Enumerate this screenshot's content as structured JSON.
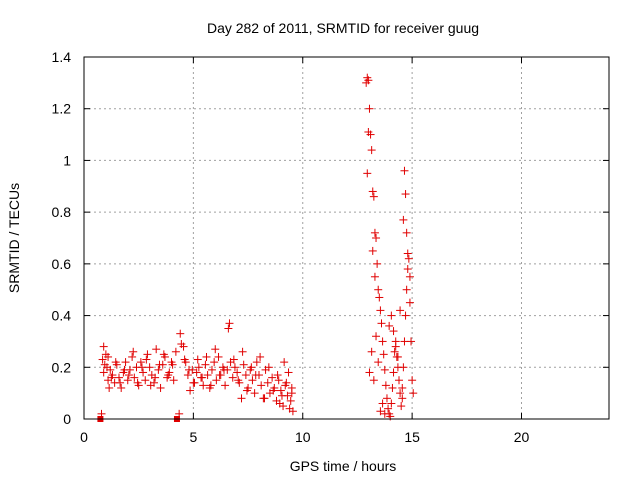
{
  "chart_data": {
    "type": "scatter",
    "title": "Day 282 of 2011, SRMTID for receiver guug",
    "xlabel": "GPS time / hours",
    "ylabel": "SRMTID / TECUs",
    "xlim": [
      0,
      24
    ],
    "ylim": [
      0,
      1.4
    ],
    "grid": true,
    "xticks": [
      0,
      5,
      10,
      15,
      20
    ],
    "xtick_labels": [
      "0",
      "5",
      "10",
      "15",
      "20"
    ],
    "yticks": [
      0,
      0.2,
      0.4,
      0.6,
      0.8,
      1,
      1.2,
      1.4
    ],
    "ytick_labels": [
      "0",
      "0.2",
      "0.4",
      "0.6",
      "0.8",
      "1",
      "1.2",
      "1.4"
    ],
    "marker_color": "#e00000",
    "series": [
      {
        "name": "SRMTID",
        "marker": "plus",
        "x": [
          0.8,
          0.85,
          0.9,
          0.95,
          1.0,
          1.05,
          1.1,
          1.15,
          1.2,
          1.3,
          1.4,
          1.5,
          1.6,
          1.7,
          1.8,
          1.9,
          2.0,
          2.1,
          2.2,
          2.3,
          2.4,
          2.5,
          2.6,
          2.7,
          2.8,
          2.9,
          3.0,
          3.1,
          3.2,
          3.3,
          3.4,
          3.5,
          3.6,
          3.7,
          3.8,
          3.9,
          4.0,
          4.1,
          4.2,
          4.35,
          4.45,
          4.55,
          4.65,
          4.75,
          4.85,
          4.95,
          5.05,
          5.15,
          5.25,
          5.35,
          5.45,
          5.55,
          5.65,
          5.75,
          5.85,
          5.95,
          6.05,
          6.15,
          6.25,
          6.35,
          6.45,
          6.55,
          6.6,
          6.7,
          6.8,
          6.9,
          7.0,
          7.1,
          7.2,
          7.3,
          7.4,
          7.5,
          7.6,
          7.7,
          7.8,
          7.9,
          8.0,
          8.1,
          8.2,
          8.3,
          8.4,
          8.5,
          8.6,
          8.7,
          8.8,
          8.9,
          9.0,
          9.1,
          9.2,
          9.3,
          9.4,
          9.5,
          9.55,
          0.9,
          1.1,
          1.25,
          1.45,
          1.65,
          1.85,
          2.05,
          2.25,
          2.45,
          2.65,
          2.85,
          3.05,
          3.25,
          3.45,
          3.65,
          3.85,
          4.05,
          4.4,
          4.6,
          4.8,
          5.0,
          5.2,
          5.4,
          5.6,
          5.8,
          6.0,
          6.2,
          6.4,
          6.65,
          6.85,
          7.05,
          7.25,
          7.45,
          7.65,
          7.85,
          8.05,
          8.25,
          8.45,
          8.65,
          8.85,
          9.05,
          9.25,
          9.45,
          9.5,
          9.35,
          9.15,
          8.95,
          12.9,
          12.95,
          13.0,
          13.05,
          13.0,
          13.1,
          13.15,
          12.95,
          13.2,
          13.25,
          13.3,
          13.2,
          13.35,
          13.4,
          13.3,
          13.45,
          13.5,
          13.55,
          13.6,
          13.65,
          13.7,
          13.75,
          13.8,
          13.85,
          13.9,
          13.95,
          14.0,
          14.05,
          14.1,
          14.15,
          14.2,
          14.25,
          14.3,
          14.35,
          14.4,
          14.45,
          14.5,
          14.55,
          14.6,
          14.65,
          14.7,
          14.75,
          14.8,
          14.85,
          14.9,
          14.95,
          15.0,
          15.05,
          14.65,
          14.7,
          14.6,
          14.75,
          14.8,
          14.9,
          13.25,
          13.35,
          13.15,
          13.45,
          13.05,
          14.15,
          14.05,
          14.25,
          13.95,
          14.35,
          14.45,
          14.55,
          13.55,
          13.65,
          13.75
        ],
        "y": [
          0.02,
          0.23,
          0.18,
          0.21,
          0.25,
          0.2,
          0.15,
          0.12,
          0.19,
          0.17,
          0.14,
          0.21,
          0.16,
          0.12,
          0.18,
          0.22,
          0.15,
          0.19,
          0.24,
          0.16,
          0.2,
          0.13,
          0.22,
          0.18,
          0.15,
          0.25,
          0.2,
          0.17,
          0.14,
          0.27,
          0.19,
          0.12,
          0.21,
          0.24,
          0.16,
          0.18,
          0.22,
          0.15,
          0.26,
          0.02,
          0.29,
          0.28,
          0.22,
          0.17,
          0.11,
          0.19,
          0.14,
          0.18,
          0.2,
          0.16,
          0.13,
          0.21,
          0.17,
          0.12,
          0.19,
          0.22,
          0.15,
          0.24,
          0.17,
          0.2,
          0.13,
          0.19,
          0.35,
          0.22,
          0.16,
          0.2,
          0.18,
          0.14,
          0.08,
          0.21,
          0.17,
          0.12,
          0.19,
          0.15,
          0.1,
          0.22,
          0.17,
          0.13,
          0.08,
          0.19,
          0.14,
          0.1,
          0.16,
          0.12,
          0.07,
          0.15,
          0.11,
          0.05,
          0.13,
          0.09,
          0.04,
          0.12,
          0.03,
          0.28,
          0.24,
          0.16,
          0.22,
          0.14,
          0.19,
          0.17,
          0.26,
          0.14,
          0.2,
          0.23,
          0.13,
          0.16,
          0.21,
          0.25,
          0.17,
          0.21,
          0.33,
          0.23,
          0.19,
          0.14,
          0.23,
          0.16,
          0.24,
          0.13,
          0.27,
          0.17,
          0.19,
          0.37,
          0.23,
          0.15,
          0.26,
          0.11,
          0.2,
          0.17,
          0.24,
          0.08,
          0.2,
          0.11,
          0.17,
          0.09,
          0.14,
          0.07,
          0.1,
          0.18,
          0.22,
          0.06,
          1.3,
          1.32,
          1.31,
          1.2,
          1.11,
          1.1,
          1.04,
          0.95,
          0.88,
          0.86,
          0.72,
          0.65,
          0.7,
          0.6,
          0.55,
          0.5,
          0.47,
          0.42,
          0.37,
          0.3,
          0.25,
          0.19,
          0.13,
          0.08,
          0.04,
          0.02,
          0.01,
          0.06,
          0.12,
          0.18,
          0.26,
          0.3,
          0.24,
          0.2,
          0.15,
          0.1,
          0.05,
          0.12,
          0.2,
          0.3,
          0.4,
          0.5,
          0.58,
          0.62,
          0.45,
          0.3,
          0.15,
          0.1,
          0.96,
          0.87,
          0.77,
          0.72,
          0.64,
          0.55,
          0.15,
          0.32,
          0.26,
          0.22,
          0.18,
          0.34,
          0.4,
          0.28,
          0.36,
          0.24,
          0.42,
          0.08,
          0.03,
          0.06,
          0.02
        ],
        "square_points": {
          "x": [
            0.75,
            4.25
          ],
          "y": [
            0,
            0
          ]
        }
      }
    ]
  }
}
